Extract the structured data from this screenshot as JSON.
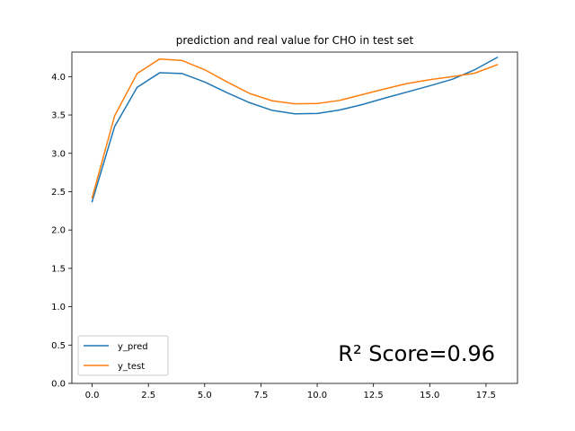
{
  "chart_data": {
    "type": "line",
    "title": "prediction and real value for CHO in test set",
    "xlabel": "",
    "ylabel": "",
    "xlim": [
      -0.9,
      18.9
    ],
    "ylim": [
      0.0,
      4.32
    ],
    "x_ticks": [
      0.0,
      2.5,
      5.0,
      7.5,
      10.0,
      12.5,
      15.0,
      17.5
    ],
    "x_tick_labels": [
      "0.0",
      "2.5",
      "5.0",
      "7.5",
      "10.0",
      "12.5",
      "15.0",
      "17.5"
    ],
    "y_ticks": [
      0.0,
      0.5,
      1.0,
      1.5,
      2.0,
      2.5,
      3.0,
      3.5,
      4.0
    ],
    "y_tick_labels": [
      "0.0",
      "0.5",
      "1.0",
      "1.5",
      "2.0",
      "2.5",
      "3.0",
      "3.5",
      "4.0"
    ],
    "grid": false,
    "legend_position": "lower-left",
    "x": [
      0,
      1,
      2,
      3,
      4,
      5,
      6,
      7,
      8,
      9,
      10,
      11,
      12,
      13,
      14,
      15,
      16,
      17,
      18
    ],
    "series": [
      {
        "name": "y_pred",
        "color": "#1f77b4",
        "values": [
          2.37,
          3.35,
          3.86,
          4.05,
          4.04,
          3.93,
          3.79,
          3.66,
          3.56,
          3.515,
          3.52,
          3.565,
          3.635,
          3.72,
          3.8,
          3.88,
          3.965,
          4.09,
          4.25
        ]
      },
      {
        "name": "y_test",
        "color": "#ff7f0e",
        "values": [
          2.42,
          3.49,
          4.04,
          4.23,
          4.21,
          4.09,
          3.93,
          3.78,
          3.685,
          3.645,
          3.65,
          3.69,
          3.765,
          3.84,
          3.91,
          3.96,
          4.0,
          4.045,
          4.155
        ]
      }
    ],
    "annotation": "R² Score=0.96"
  }
}
